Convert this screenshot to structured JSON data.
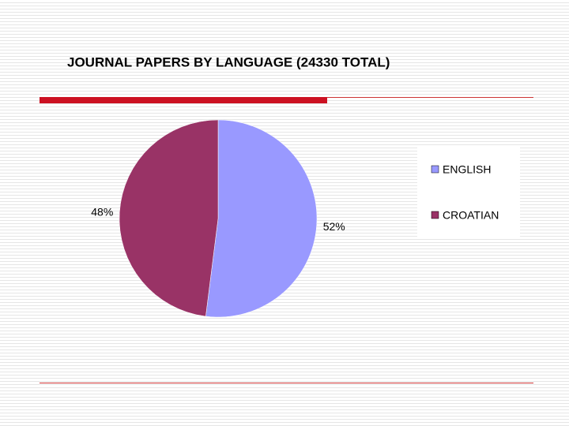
{
  "chart_data": {
    "type": "pie",
    "title": "JOURNAL PAPERS BY LANGUAGE (24330 TOTAL)",
    "categories": [
      "ENGLISH",
      "CROATIAN"
    ],
    "values": [
      52,
      48
    ],
    "value_labels": [
      "52%",
      "48%"
    ],
    "colors": [
      "#9999ff",
      "#993366"
    ],
    "legend": "right"
  }
}
